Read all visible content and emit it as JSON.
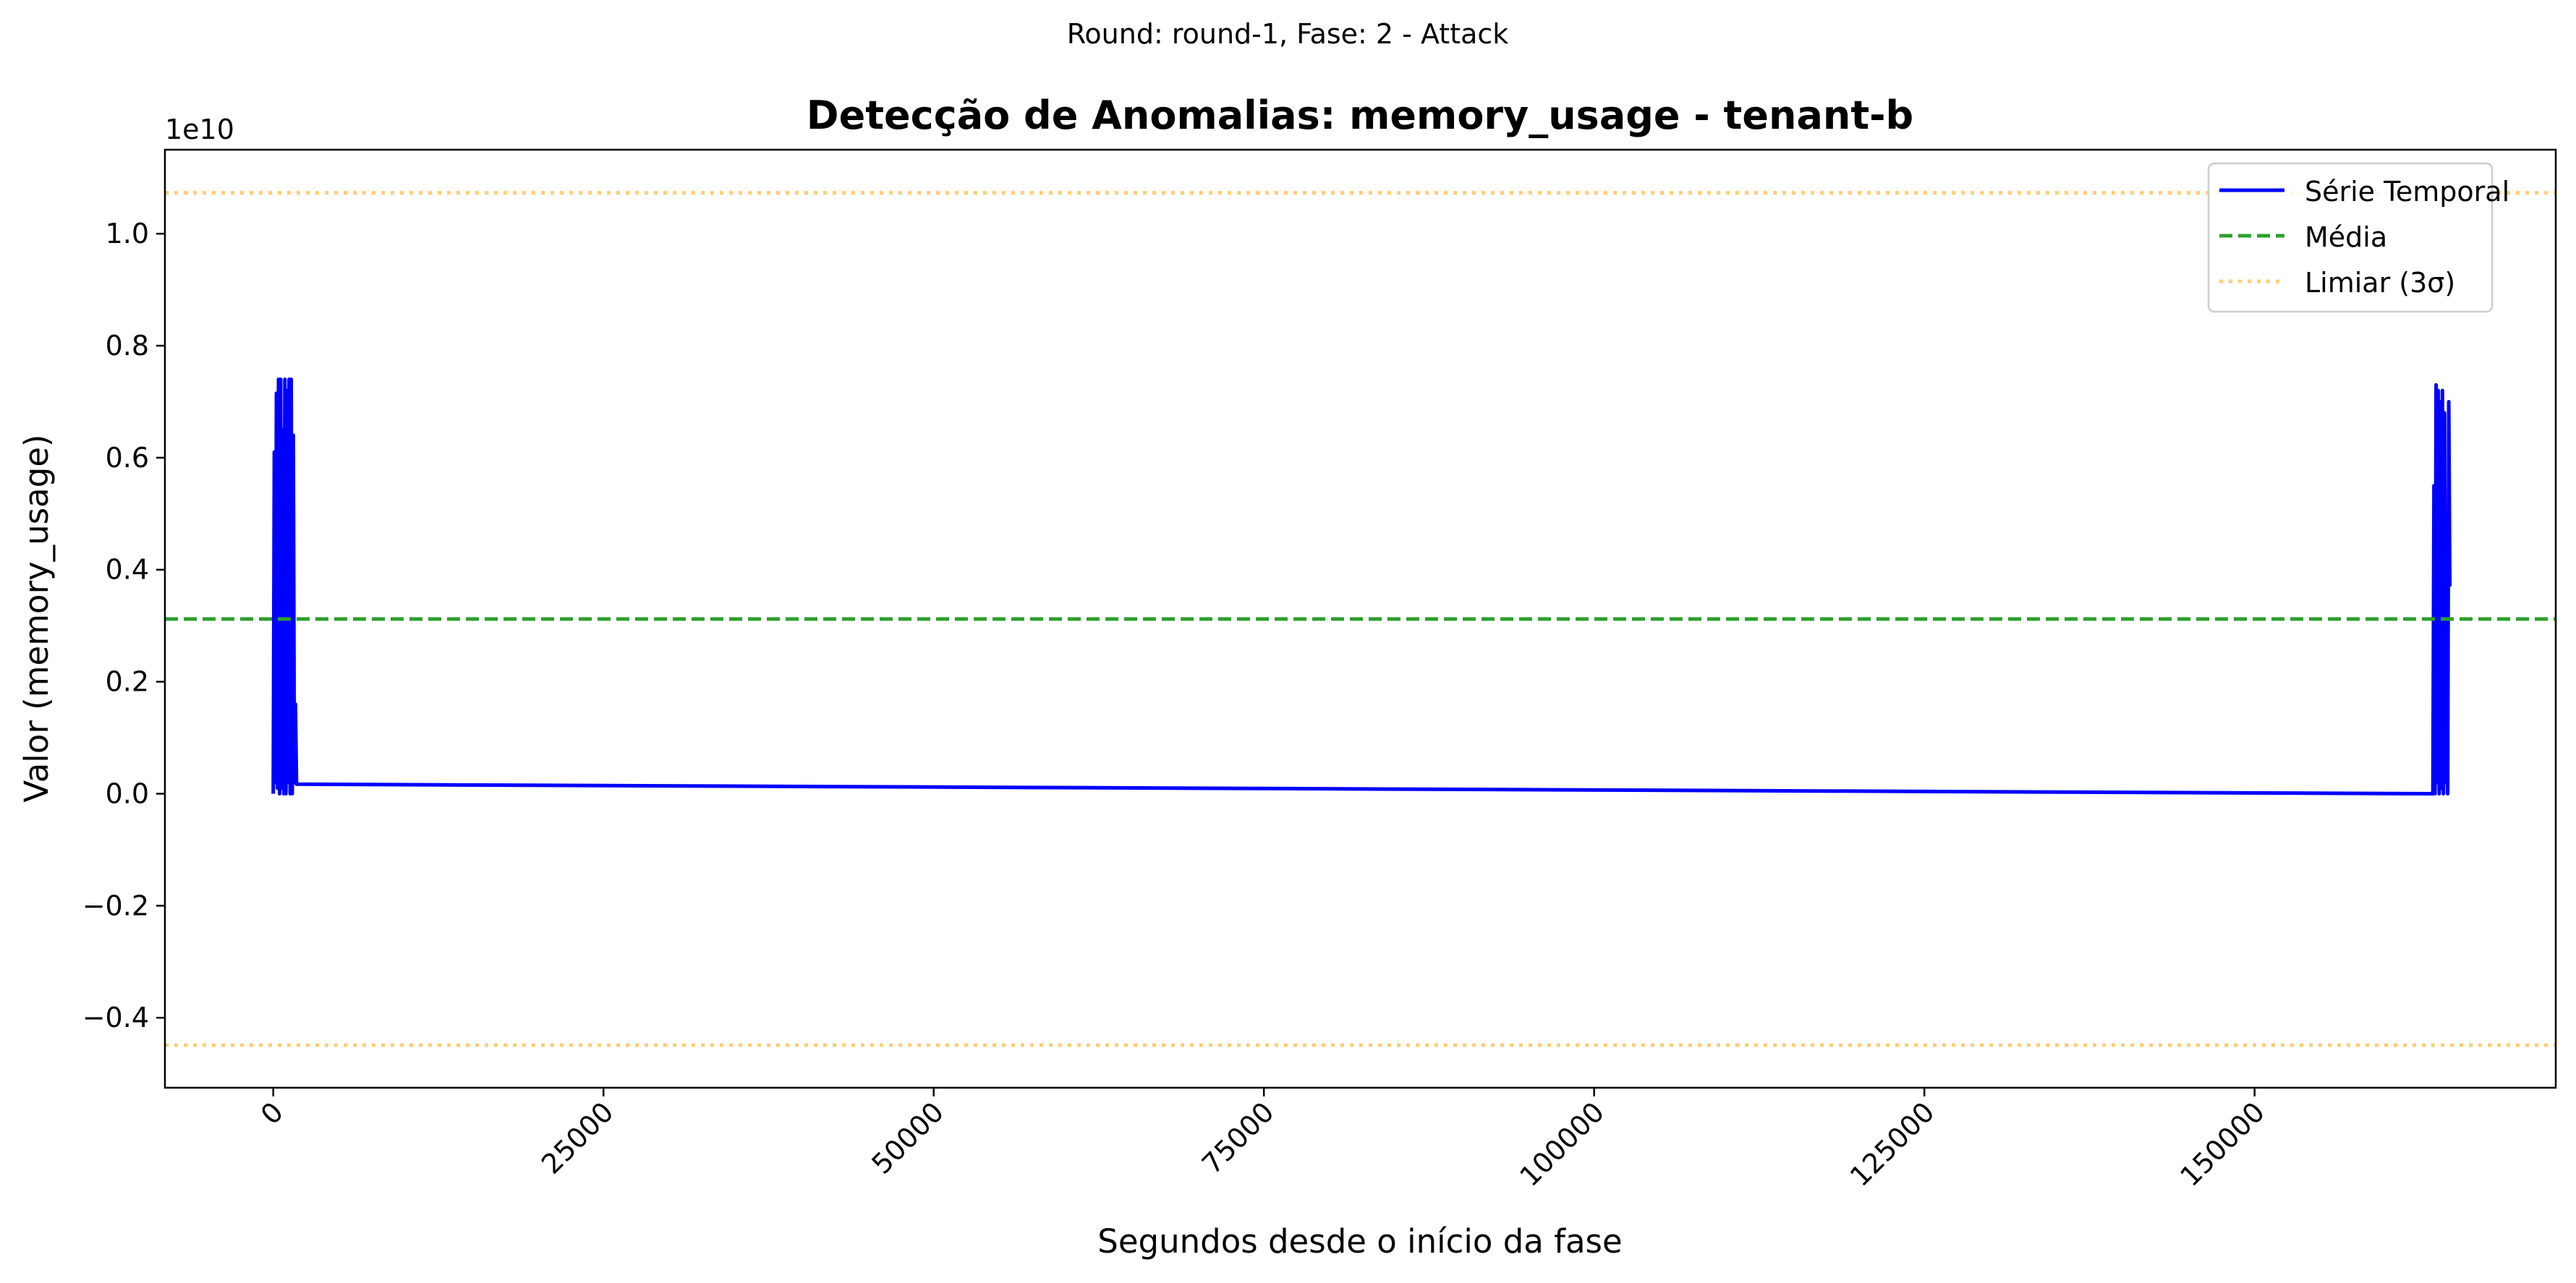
{
  "chart_data": {
    "type": "line",
    "suptitle": "Round: round-1, Fase: 2 - Attack",
    "title": "Detecção de Anomalias: memory_usage - tenant-b",
    "xlabel": "Segundos desde o início da fase",
    "ylabel": "Valor (memory_usage)",
    "y_offset_label": "1e10",
    "xlim": [
      -8200,
      172800
    ],
    "ylim": [
      -0.525,
      1.15
    ],
    "xticks": [
      0,
      25000,
      50000,
      75000,
      100000,
      125000,
      150000
    ],
    "xtick_labels": [
      "0",
      "25000",
      "50000",
      "75000",
      "100000",
      "125000",
      "150000"
    ],
    "yticks": [
      -0.4,
      -0.2,
      0.0,
      0.2,
      0.4,
      0.6,
      0.8,
      1.0
    ],
    "ytick_labels": [
      "−0.4",
      "−0.2",
      "0.0",
      "0.2",
      "0.4",
      "0.6",
      "0.8",
      "1.0"
    ],
    "grid": false,
    "legend_position": "top-right",
    "legend": [
      {
        "label": "Série Temporal",
        "style": "solid",
        "color": "#0000ff"
      },
      {
        "label": "Média",
        "style": "dashed",
        "color": "#2ca02c"
      },
      {
        "label": "Limiar (3σ)",
        "style": "dotted",
        "color": "#ffa500"
      }
    ],
    "series": [
      {
        "name": "Série Temporal",
        "color": "#0000ff",
        "x": [
          0,
          80,
          160,
          240,
          320,
          400,
          480,
          560,
          640,
          720,
          800,
          880,
          960,
          1040,
          1120,
          1200,
          1280,
          1360,
          1440,
          1520,
          1600,
          1680,
          1760,
          163500,
          163580,
          163660,
          163740,
          163820,
          163900,
          163980,
          164060,
          164140,
          164220,
          164300,
          164380,
          164460,
          164540,
          164620,
          164700,
          164780
        ],
        "y": [
          0.0,
          0.61,
          0.02,
          0.715,
          0.01,
          0.74,
          0.0,
          0.74,
          0.01,
          0.65,
          0.0,
          0.74,
          0.0,
          0.72,
          0.02,
          0.74,
          0.0,
          0.74,
          0.0,
          0.64,
          0.02,
          0.16,
          0.017,
          0.0,
          0.55,
          0.0,
          0.73,
          0.02,
          0.72,
          0.0,
          0.7,
          0.01,
          0.72,
          0.0,
          0.68,
          0.02,
          0.36,
          0.0,
          0.7,
          0.37
        ]
      }
    ],
    "mean_line": {
      "name": "Média",
      "value": 0.312,
      "color": "#2ca02c"
    },
    "threshold_lines": [
      {
        "name": "Limiar (3σ)",
        "value": 1.073,
        "color": "#ffa500"
      },
      {
        "name": "Limiar (3σ)",
        "value": -0.449,
        "color": "#ffa500"
      }
    ]
  }
}
